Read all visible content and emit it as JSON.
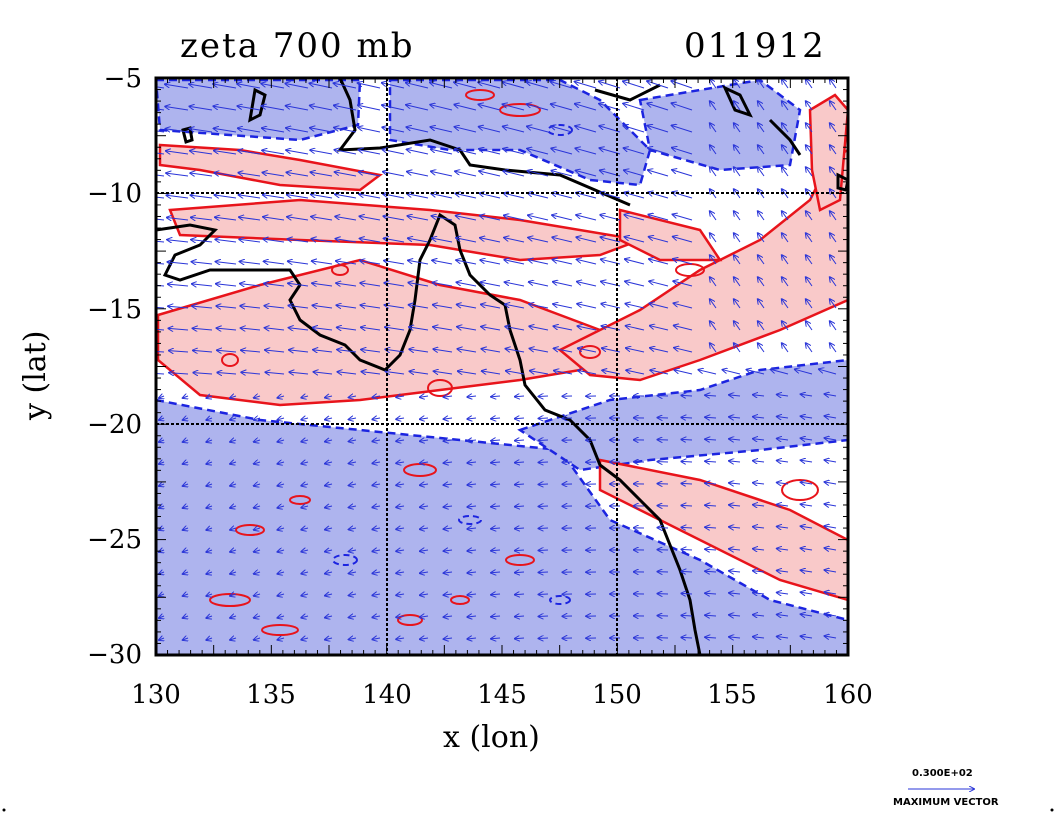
{
  "title": {
    "field": "zeta 700 mb",
    "time": "011912"
  },
  "axes": {
    "xlabel": "x (lon)",
    "ylabel": "y (lat)",
    "x_ticks": [
      "130",
      "135",
      "140",
      "145",
      "150",
      "155",
      "160"
    ],
    "y_ticks": [
      "−5",
      "−10",
      "−15",
      "−20",
      "−25",
      "−30"
    ],
    "xlim": [
      130,
      160
    ],
    "ylim": [
      -30,
      -5
    ],
    "grid_lon": [
      140,
      150
    ],
    "grid_lat": [
      -10,
      -20
    ]
  },
  "legend": {
    "vector_value": "0.300E+02",
    "vector_caption": "MAXIMUM VECTOR"
  },
  "colors": {
    "positive_contour": "#e8141b",
    "positive_fill": "#f9c9c9",
    "negative_contour": "#1c24e0",
    "negative_fill": "#aeb4ee",
    "coast": "#000000",
    "vectors": "#2a35d8"
  }
}
